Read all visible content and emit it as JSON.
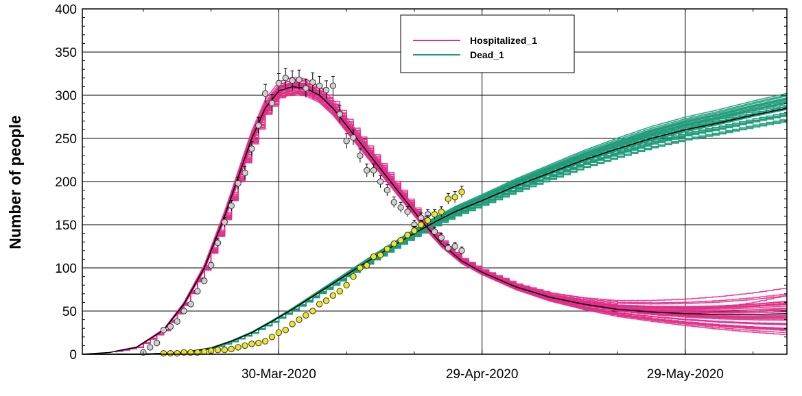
{
  "chart_data": {
    "type": "line",
    "title": "",
    "xlabel": "",
    "ylabel": "Number of people",
    "ylim": [
      0,
      400
    ],
    "xlim": [
      "2020-03-01",
      "2020-06-13"
    ],
    "y_ticks": [
      0,
      50,
      100,
      150,
      200,
      250,
      300,
      350,
      400
    ],
    "x_ticks": [
      {
        "date": "2020-03-30",
        "label": "30-Mar-2020"
      },
      {
        "date": "2020-04-29",
        "label": "29-Apr-2020"
      },
      {
        "date": "2020-05-29",
        "label": "29-May-2020"
      }
    ],
    "grid": true,
    "legend_position": "top-center",
    "legend": [
      {
        "name": "Hospitalized_1",
        "color": "#e0308a"
      },
      {
        "name": "Dead_1",
        "color": "#1f9b7a"
      }
    ],
    "series": [
      {
        "name": "Hospitalized_1",
        "kind": "model-fit",
        "color": "#000000",
        "x": [
          "2020-03-01",
          "2020-03-05",
          "2020-03-09",
          "2020-03-13",
          "2020-03-16",
          "2020-03-19",
          "2020-03-22",
          "2020-03-24",
          "2020-03-26",
          "2020-03-28",
          "2020-03-30",
          "2020-04-01",
          "2020-04-03",
          "2020-04-05",
          "2020-04-07",
          "2020-04-09",
          "2020-04-11",
          "2020-04-14",
          "2020-04-17",
          "2020-04-20",
          "2020-04-23",
          "2020-04-26",
          "2020-04-29",
          "2020-05-04",
          "2020-05-09",
          "2020-05-14",
          "2020-05-19",
          "2020-05-24",
          "2020-05-29",
          "2020-06-03",
          "2020-06-08",
          "2020-06-13"
        ],
        "y": [
          0,
          2,
          8,
          28,
          58,
          100,
          160,
          205,
          250,
          285,
          305,
          310,
          308,
          300,
          285,
          265,
          245,
          215,
          185,
          155,
          128,
          108,
          95,
          78,
          66,
          58,
          52,
          49,
          47,
          46,
          46,
          47
        ]
      },
      {
        "name": "Dead_1",
        "kind": "model-fit",
        "color": "#000000",
        "x": [
          "2020-03-01",
          "2020-03-10",
          "2020-03-16",
          "2020-03-20",
          "2020-03-23",
          "2020-03-26",
          "2020-03-29",
          "2020-04-01",
          "2020-04-04",
          "2020-04-07",
          "2020-04-10",
          "2020-04-13",
          "2020-04-16",
          "2020-04-19",
          "2020-04-22",
          "2020-04-25",
          "2020-04-29",
          "2020-05-04",
          "2020-05-09",
          "2020-05-14",
          "2020-05-19",
          "2020-05-24",
          "2020-05-29",
          "2020-06-03",
          "2020-06-08",
          "2020-06-13"
        ],
        "y": [
          0,
          0,
          2,
          7,
          15,
          25,
          38,
          52,
          67,
          82,
          97,
          112,
          126,
          140,
          153,
          165,
          178,
          195,
          210,
          225,
          238,
          250,
          260,
          268,
          277,
          285
        ]
      },
      {
        "name": "Hospitalized_1",
        "kind": "observed",
        "color": "#d0d0d0",
        "x": [
          "2020-03-10",
          "2020-03-11",
          "2020-03-12",
          "2020-03-13",
          "2020-03-14",
          "2020-03-15",
          "2020-03-16",
          "2020-03-17",
          "2020-03-18",
          "2020-03-19",
          "2020-03-20",
          "2020-03-21",
          "2020-03-22",
          "2020-03-23",
          "2020-03-24",
          "2020-03-25",
          "2020-03-26",
          "2020-03-27",
          "2020-03-28",
          "2020-03-29",
          "2020-03-30",
          "2020-03-31",
          "2020-04-01",
          "2020-04-02",
          "2020-04-03",
          "2020-04-04",
          "2020-04-05",
          "2020-04-06",
          "2020-04-07",
          "2020-04-08",
          "2020-04-09",
          "2020-04-10",
          "2020-04-11",
          "2020-04-12",
          "2020-04-13",
          "2020-04-14",
          "2020-04-15",
          "2020-04-16",
          "2020-04-17",
          "2020-04-18",
          "2020-04-19",
          "2020-04-20",
          "2020-04-21",
          "2020-04-22",
          "2020-04-23",
          "2020-04-24",
          "2020-04-25",
          "2020-04-26"
        ],
        "y": [
          2,
          8,
          13,
          28,
          32,
          38,
          50,
          58,
          73,
          85,
          103,
          129,
          153,
          172,
          198,
          210,
          238,
          265,
          302,
          291,
          314,
          320,
          317,
          318,
          308,
          315,
          311,
          306,
          311,
          278,
          247,
          251,
          230,
          213,
          213,
          200,
          190,
          176,
          170,
          165,
          150,
          158,
          162,
          142,
          135,
          123,
          125,
          120
        ]
      },
      {
        "name": "Dead_1",
        "kind": "observed",
        "color": "#f2e61a",
        "x": [
          "2020-03-13",
          "2020-03-14",
          "2020-03-15",
          "2020-03-16",
          "2020-03-17",
          "2020-03-18",
          "2020-03-19",
          "2020-03-20",
          "2020-03-21",
          "2020-03-22",
          "2020-03-23",
          "2020-03-24",
          "2020-03-25",
          "2020-03-26",
          "2020-03-27",
          "2020-03-28",
          "2020-03-29",
          "2020-03-30",
          "2020-03-31",
          "2020-04-01",
          "2020-04-02",
          "2020-04-03",
          "2020-04-04",
          "2020-04-05",
          "2020-04-06",
          "2020-04-07",
          "2020-04-08",
          "2020-04-09",
          "2020-04-10",
          "2020-04-11",
          "2020-04-12",
          "2020-04-13",
          "2020-04-14",
          "2020-04-15",
          "2020-04-16",
          "2020-04-17",
          "2020-04-18",
          "2020-04-19",
          "2020-04-20",
          "2020-04-21",
          "2020-04-22",
          "2020-04-23",
          "2020-04-24",
          "2020-04-25",
          "2020-04-26"
        ],
        "y": [
          1,
          1,
          1,
          2,
          2,
          2,
          3,
          4,
          5,
          5,
          6,
          8,
          10,
          12,
          13,
          15,
          20,
          25,
          28,
          35,
          40,
          45,
          50,
          58,
          62,
          68,
          73,
          80,
          90,
          100,
          103,
          113,
          115,
          122,
          128,
          132,
          138,
          143,
          150,
          155,
          162,
          165,
          180,
          182,
          188
        ]
      }
    ],
    "ensemble": [
      {
        "name": "Hospitalized_1",
        "color": "#e0308a",
        "spread": "±8% near peak widening to 10–125 at end"
      },
      {
        "name": "Dead_1",
        "color": "#1f9b7a",
        "spread": "±4% mid widening to 243–331 at end"
      }
    ]
  }
}
